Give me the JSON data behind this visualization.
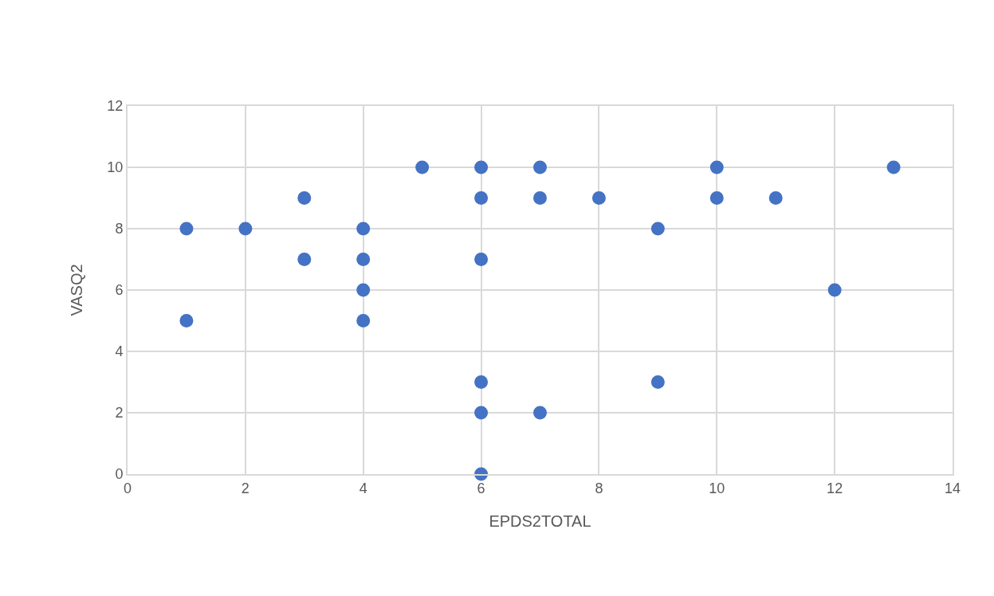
{
  "chart_data": {
    "type": "scatter",
    "xlabel": "EPDS2TOTAL",
    "ylabel": "VASQ2",
    "x": [
      1,
      1,
      2,
      3,
      3,
      4,
      4,
      4,
      4,
      5,
      6,
      6,
      6,
      6,
      6,
      6,
      7,
      7,
      7,
      8,
      9,
      9,
      10,
      10,
      11,
      12,
      13
    ],
    "series": [
      {
        "color": "#4472c4",
        "values": [
          8,
          5,
          8,
          9,
          7,
          8,
          7,
          6,
          5,
          10,
          10,
          9,
          7,
          3,
          2,
          0,
          10,
          9,
          2,
          9,
          8,
          3,
          10,
          9,
          9,
          6,
          10
        ]
      }
    ],
    "xlim": [
      0,
      14
    ],
    "xticks": [
      0,
      2,
      4,
      6,
      8,
      10,
      12,
      14
    ],
    "ylim": [
      0,
      12
    ],
    "yticks": [
      0,
      2,
      4,
      6,
      8,
      10,
      12
    ],
    "grid": true,
    "marker": "circle"
  }
}
